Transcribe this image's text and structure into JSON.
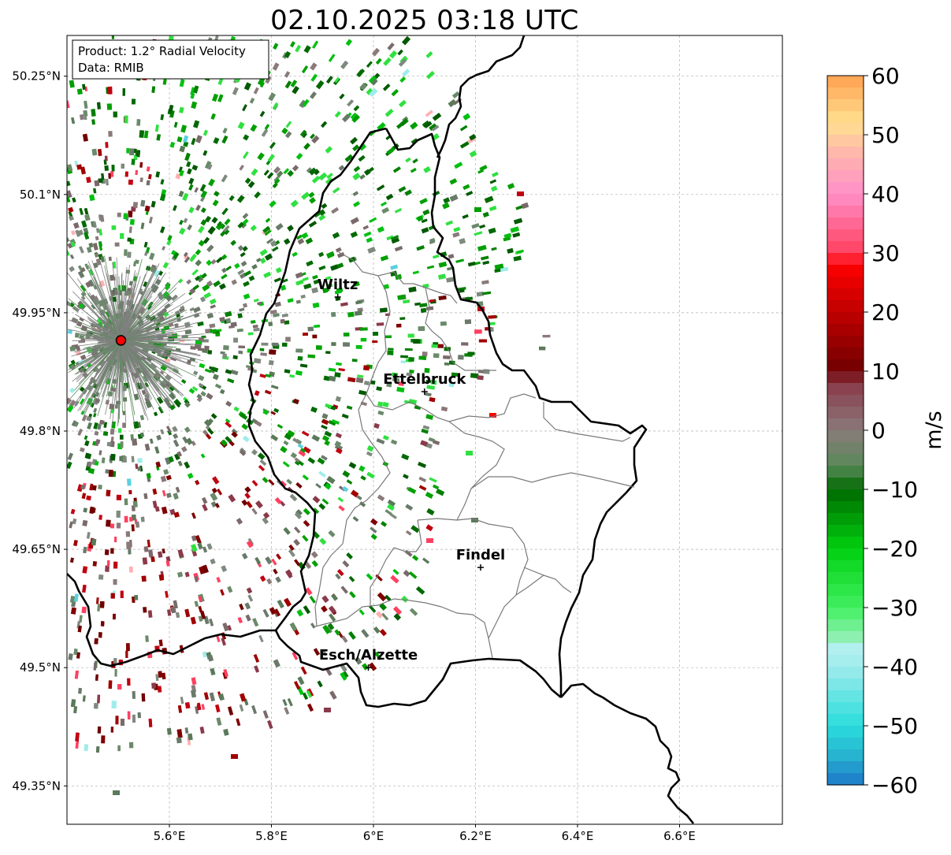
{
  "title": "02.10.2025 03:18 UTC",
  "info_box": {
    "product": "Product: 1.2° Radial Velocity",
    "data": "Data: RMIB"
  },
  "axes": {
    "lat_ticks": [
      "50.25°N",
      "50.1°N",
      "49.95°N",
      "49.8°N",
      "49.65°N",
      "49.5°N",
      "49.35°N"
    ],
    "lat_values": [
      50.25,
      50.1,
      49.95,
      49.8,
      49.65,
      49.5,
      49.35
    ],
    "lon_ticks": [
      "5.6°E",
      "5.8°E",
      "6°E",
      "6.2°E",
      "6.4°E",
      "6.6°E"
    ],
    "lon_values": [
      5.6,
      5.8,
      6.0,
      6.2,
      6.4,
      6.6
    ],
    "lon_range": [
      5.4,
      6.8
    ],
    "lat_range": [
      49.3,
      50.3
    ],
    "grid": true
  },
  "places": [
    {
      "name": "Wiltz",
      "lon": 5.93,
      "lat": 49.97
    },
    {
      "name": "Ettelbruck",
      "lon": 6.1,
      "lat": 49.85
    },
    {
      "name": "Findel",
      "lon": 6.21,
      "lat": 49.627
    },
    {
      "name": "Esch/Alzette",
      "lon": 5.99,
      "lat": 49.5
    }
  ],
  "radar_site": {
    "lon": 5.505,
    "lat": 49.915,
    "color": "#ff0000"
  },
  "colorbar": {
    "label": "m/s",
    "min": -60,
    "max": 60,
    "ticks": [
      "60",
      "50",
      "40",
      "30",
      "20",
      "10",
      "0",
      "−10",
      "−20",
      "−30",
      "−40",
      "−50",
      "−60"
    ],
    "tick_values": [
      60,
      50,
      40,
      30,
      20,
      10,
      0,
      -10,
      -20,
      -30,
      -40,
      -50,
      -60
    ],
    "stops": [
      {
        "v": -60,
        "color": "#1f78c8"
      },
      {
        "v": -55,
        "color": "#26b4d0"
      },
      {
        "v": -50,
        "color": "#2adcdc"
      },
      {
        "v": -40,
        "color": "#a0ecec"
      },
      {
        "v": -36,
        "color": "#b8f0f0"
      },
      {
        "v": -35,
        "color": "#8ef0b0"
      },
      {
        "v": -30,
        "color": "#40f060"
      },
      {
        "v": -20,
        "color": "#00d010"
      },
      {
        "v": -10,
        "color": "#006a00"
      },
      {
        "v": -6,
        "color": "#5a8a5a"
      },
      {
        "v": 0,
        "color": "#8a7a7a"
      },
      {
        "v": 8,
        "color": "#8a3a4a"
      },
      {
        "v": 10,
        "color": "#700000"
      },
      {
        "v": 28,
        "color": "#ff0000"
      },
      {
        "v": 30,
        "color": "#ff4060"
      },
      {
        "v": 40,
        "color": "#ff90c8"
      },
      {
        "v": 46,
        "color": "#ffb0b0"
      },
      {
        "v": 52,
        "color": "#ffe090"
      },
      {
        "v": 60,
        "color": "#ffa050"
      }
    ]
  }
}
